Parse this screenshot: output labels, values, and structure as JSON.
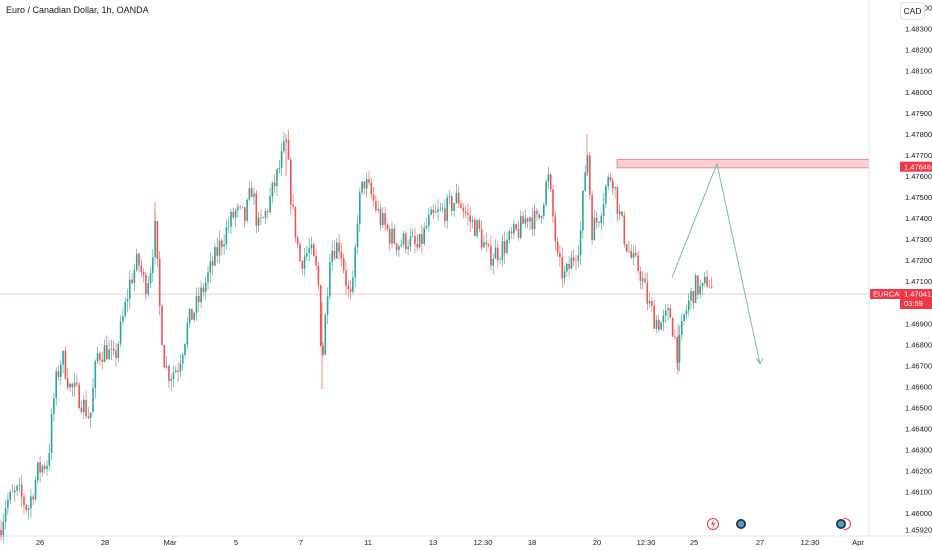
{
  "header": {
    "title": "Euro / Canadian Dollar, 1h, OANDA",
    "currency_button": "CAD"
  },
  "colors": {
    "up": "#26a69a",
    "down": "#ef5350",
    "zone": "#f7b9bd",
    "price_label": "#f23645",
    "projection": "#7fb8a8"
  },
  "icons": {
    "event_1": "lightning-icon",
    "event_2": "flag-icon",
    "event_3": "flag-icon"
  },
  "price_axis": {
    "ticks": [
      "1.48400",
      "1.48300",
      "1.48200",
      "1.48100",
      "1.48000",
      "1.47900",
      "1.47800",
      "1.47700",
      "1.47600",
      "1.47500",
      "1.47400",
      "1.47300",
      "1.47200",
      "1.47100",
      "1.47000",
      "1.46900",
      "1.46800",
      "1.46700",
      "1.46600",
      "1.46500",
      "1.46400",
      "1.46300",
      "1.46200",
      "1.46100",
      "1.46000",
      "1.45920"
    ]
  },
  "time_axis": {
    "ticks": [
      "26",
      "28",
      "Mar",
      "5",
      "7",
      "11",
      "13",
      "12:30",
      "18",
      "20",
      "12:30",
      "25",
      "27",
      "12:30",
      "Apr"
    ]
  },
  "resistance_label": {
    "value": "1.47646"
  },
  "last_price": {
    "symbol": "EURCAD",
    "value": "1.47041",
    "countdown": "03:59"
  },
  "chart_data": {
    "type": "candlestick",
    "symbol": "EURCAD",
    "timeframe": "1h",
    "ylim": [
      1.4592,
      1.4845
    ],
    "resistance_zone": [
      1.4764,
      1.4768
    ],
    "last_price": 1.47041,
    "projection": [
      {
        "x": "25",
        "y": 1.4712
      },
      {
        "x": "26",
        "y": 1.4766
      },
      {
        "x": "27",
        "y": 1.4671
      }
    ],
    "path": [
      [
        0,
        1.4592
      ],
      [
        6,
        1.4605
      ],
      [
        18,
        1.461
      ],
      [
        28,
        1.4602
      ],
      [
        38,
        1.462
      ],
      [
        48,
        1.4625
      ],
      [
        55,
        1.466
      ],
      [
        62,
        1.4675
      ],
      [
        70,
        1.466
      ],
      [
        80,
        1.4655
      ],
      [
        90,
        1.4645
      ],
      [
        97,
        1.4675
      ],
      [
        106,
        1.4678
      ],
      [
        114,
        1.4672
      ],
      [
        122,
        1.469
      ],
      [
        130,
        1.471
      ],
      [
        138,
        1.472
      ],
      [
        145,
        1.4708
      ],
      [
        150,
        1.4715
      ],
      [
        155,
        1.4735
      ],
      [
        160,
        1.4695
      ],
      [
        165,
        1.467
      ],
      [
        170,
        1.4666
      ],
      [
        178,
        1.467
      ],
      [
        188,
        1.469
      ],
      [
        198,
        1.47
      ],
      [
        210,
        1.4715
      ],
      [
        222,
        1.473
      ],
      [
        235,
        1.4743
      ],
      [
        245,
        1.474
      ],
      [
        252,
        1.4755
      ],
      [
        258,
        1.4735
      ],
      [
        264,
        1.474
      ],
      [
        272,
        1.4752
      ],
      [
        280,
        1.4765
      ],
      [
        286,
        1.4776
      ],
      [
        292,
        1.4745
      ],
      [
        300,
        1.472
      ],
      [
        310,
        1.4725
      ],
      [
        318,
        1.4712
      ],
      [
        322,
        1.467
      ],
      [
        330,
        1.4725
      ],
      [
        340,
        1.4728
      ],
      [
        348,
        1.4705
      ],
      [
        352,
        1.47
      ],
      [
        358,
        1.4745
      ],
      [
        364,
        1.4758
      ],
      [
        372,
        1.475
      ],
      [
        380,
        1.474
      ],
      [
        390,
        1.4732
      ],
      [
        398,
        1.4728
      ],
      [
        408,
        1.473
      ],
      [
        418,
        1.4725
      ],
      [
        428,
        1.4738
      ],
      [
        438,
        1.4742
      ],
      [
        448,
        1.4745
      ],
      [
        458,
        1.475
      ],
      [
        468,
        1.474
      ],
      [
        478,
        1.4735
      ],
      [
        488,
        1.4722
      ],
      [
        500,
        1.4725
      ],
      [
        510,
        1.473
      ],
      [
        520,
        1.4735
      ],
      [
        528,
        1.4742
      ],
      [
        538,
        1.4738
      ],
      [
        548,
        1.476
      ],
      [
        552,
        1.4745
      ],
      [
        558,
        1.4718
      ],
      [
        565,
        1.4712
      ],
      [
        572,
        1.472
      ],
      [
        580,
        1.473
      ],
      [
        587,
        1.4775
      ],
      [
        592,
        1.4735
      ],
      [
        598,
        1.474
      ],
      [
        606,
        1.4755
      ],
      [
        612,
        1.4762
      ],
      [
        618,
        1.4745
      ],
      [
        625,
        1.473
      ],
      [
        632,
        1.472
      ],
      [
        640,
        1.4715
      ],
      [
        648,
        1.47
      ],
      [
        655,
        1.4692
      ],
      [
        662,
        1.469
      ],
      [
        670,
        1.4695
      ],
      [
        678,
        1.4675
      ],
      [
        684,
        1.4693
      ],
      [
        690,
        1.4702
      ],
      [
        696,
        1.4708
      ],
      [
        702,
        1.4705
      ],
      [
        708,
        1.4712
      ],
      [
        713,
        1.4704
      ]
    ]
  }
}
